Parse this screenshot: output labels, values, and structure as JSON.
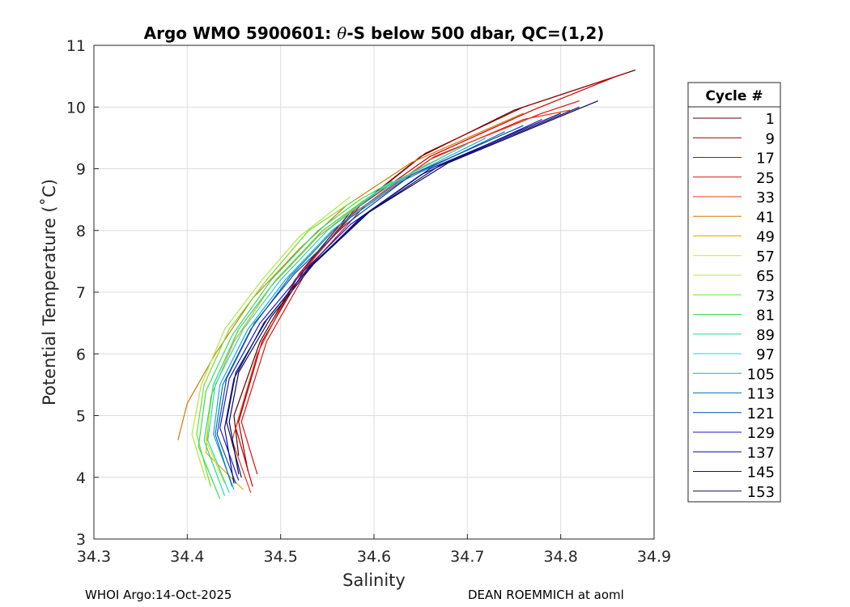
{
  "chart_data": {
    "type": "line",
    "title_prefix": "Argo WMO 5900601: ",
    "title_theta": "θ",
    "title_suffix": "-S below 500 dbar,  QC=(1,2)",
    "xlabel": "Salinity",
    "ylabel": "Potential Temperature (˚C)",
    "xlim": [
      34.3,
      34.9
    ],
    "ylim": [
      3,
      11
    ],
    "xticks": [
      34.3,
      34.4,
      34.5,
      34.6,
      34.7,
      34.8,
      34.9
    ],
    "xtick_labels": [
      "34.3",
      "34.4",
      "34.5",
      "34.6",
      "34.7",
      "34.8",
      "34.9"
    ],
    "yticks": [
      3,
      4,
      5,
      6,
      7,
      8,
      9,
      10,
      11
    ],
    "ytick_labels": [
      "3",
      "4",
      "5",
      "6",
      "7",
      "8",
      "9",
      "10",
      "11"
    ],
    "grid": true,
    "legend": {
      "title": "Cycle #",
      "position": "right",
      "entries": [
        {
          "label": "1",
          "color": "#600000"
        },
        {
          "label": "9",
          "color": "#9a0000"
        },
        {
          "label": "17",
          "color": "#cc0000"
        },
        {
          "label": "25",
          "color": "#e01010"
        },
        {
          "label": "33",
          "color": "#e63a1a"
        },
        {
          "label": "41",
          "color": "#d67a00"
        },
        {
          "label": "49",
          "color": "#e8a800"
        },
        {
          "label": "57",
          "color": "#e6e600"
        },
        {
          "label": "65",
          "color": "#b0e840"
        },
        {
          "label": "73",
          "color": "#6fe030"
        },
        {
          "label": "81",
          "color": "#3cdc55"
        },
        {
          "label": "89",
          "color": "#20dca0"
        },
        {
          "label": "97",
          "color": "#20d8d8"
        },
        {
          "label": "105",
          "color": "#1aa8d8"
        },
        {
          "label": "113",
          "color": "#0a78a8"
        },
        {
          "label": "121",
          "color": "#0a4ab0"
        },
        {
          "label": "129",
          "color": "#1a1acc"
        },
        {
          "label": "137",
          "color": "#0a0a90"
        },
        {
          "label": "145",
          "color": "#14146e"
        },
        {
          "label": "153",
          "color": "#0a0a50"
        }
      ]
    },
    "series": [
      {
        "name": "1",
        "color": "#600000",
        "points": [
          [
            34.455,
            4.35
          ],
          [
            34.45,
            5.0
          ],
          [
            34.478,
            6.2
          ],
          [
            34.52,
            7.3
          ],
          [
            34.575,
            8.3
          ],
          [
            34.65,
            9.2
          ],
          [
            34.75,
            9.95
          ],
          [
            34.88,
            10.6
          ]
        ]
      },
      {
        "name": "9",
        "color": "#9a0000",
        "points": [
          [
            34.465,
            4.1
          ],
          [
            34.455,
            4.9
          ],
          [
            34.48,
            6.2
          ],
          [
            34.525,
            7.35
          ],
          [
            34.58,
            8.35
          ],
          [
            34.655,
            9.25
          ],
          [
            34.76,
            10.0
          ],
          [
            34.87,
            10.55
          ]
        ]
      },
      {
        "name": "17",
        "color": "#cc0000",
        "points": [
          [
            34.47,
            3.85
          ],
          [
            34.452,
            4.8
          ],
          [
            34.478,
            6.1
          ],
          [
            34.52,
            7.3
          ],
          [
            34.585,
            8.4
          ],
          [
            34.66,
            9.2
          ],
          [
            34.77,
            9.95
          ],
          [
            34.86,
            10.5
          ]
        ]
      },
      {
        "name": "25",
        "color": "#e01010",
        "points": [
          [
            34.475,
            4.05
          ],
          [
            34.458,
            4.9
          ],
          [
            34.485,
            6.2
          ],
          [
            34.53,
            7.4
          ],
          [
            34.59,
            8.4
          ],
          [
            34.665,
            9.2
          ],
          [
            34.78,
            9.9
          ],
          [
            34.82,
            10.1
          ]
        ]
      },
      {
        "name": "33",
        "color": "#e63a1a",
        "points": [
          [
            34.468,
            3.75
          ],
          [
            34.448,
            4.6
          ],
          [
            34.475,
            6.0
          ],
          [
            34.515,
            7.2
          ],
          [
            34.58,
            8.3
          ],
          [
            34.66,
            9.15
          ],
          [
            34.76,
            9.8
          ],
          [
            34.81,
            9.95
          ]
        ]
      },
      {
        "name": "41",
        "color": "#d67a00",
        "points": [
          [
            34.39,
            4.6
          ],
          [
            34.4,
            5.2
          ],
          [
            34.43,
            6.0
          ],
          [
            34.47,
            6.9
          ],
          [
            34.52,
            7.7
          ],
          [
            34.57,
            8.4
          ],
          [
            34.64,
            9.1
          ],
          [
            34.76,
            9.9
          ]
        ]
      },
      {
        "name": "49",
        "color": "#e8a800",
        "points": [
          [
            34.46,
            3.8
          ],
          [
            34.42,
            4.4
          ],
          [
            34.425,
            5.3
          ],
          [
            34.45,
            6.2
          ],
          [
            34.49,
            7.1
          ],
          [
            34.54,
            7.9
          ],
          [
            34.6,
            8.6
          ],
          [
            34.7,
            9.4
          ]
        ]
      },
      {
        "name": "57",
        "color": "#e6e600",
        "points": [
          [
            34.44,
            3.9
          ],
          [
            34.42,
            4.6
          ],
          [
            34.428,
            5.5
          ],
          [
            34.455,
            6.4
          ],
          [
            34.495,
            7.2
          ],
          [
            34.545,
            8.0
          ],
          [
            34.59,
            8.5
          ]
        ]
      },
      {
        "name": "65",
        "color": "#b0e840",
        "points": [
          [
            34.42,
            3.95
          ],
          [
            34.405,
            4.7
          ],
          [
            34.415,
            5.5
          ],
          [
            34.44,
            6.4
          ],
          [
            34.48,
            7.2
          ],
          [
            34.52,
            7.9
          ],
          [
            34.575,
            8.55
          ]
        ]
      },
      {
        "name": "73",
        "color": "#6fe030",
        "points": [
          [
            34.425,
            3.85
          ],
          [
            34.41,
            4.7
          ],
          [
            34.418,
            5.5
          ],
          [
            34.445,
            6.4
          ],
          [
            34.485,
            7.2
          ],
          [
            34.53,
            8.0
          ],
          [
            34.58,
            8.5
          ]
        ]
      },
      {
        "name": "81",
        "color": "#3cdc55",
        "points": [
          [
            34.435,
            3.65
          ],
          [
            34.412,
            4.5
          ],
          [
            34.42,
            5.4
          ],
          [
            34.448,
            6.3
          ],
          [
            34.49,
            7.2
          ],
          [
            34.54,
            8.0
          ],
          [
            34.585,
            8.5
          ],
          [
            34.62,
            8.8
          ]
        ]
      },
      {
        "name": "89",
        "color": "#20dca0",
        "points": [
          [
            34.44,
            3.7
          ],
          [
            34.418,
            4.6
          ],
          [
            34.428,
            5.5
          ],
          [
            34.455,
            6.4
          ],
          [
            34.495,
            7.2
          ],
          [
            34.545,
            8.0
          ],
          [
            34.6,
            8.6
          ],
          [
            34.66,
            9.1
          ]
        ]
      },
      {
        "name": "97",
        "color": "#20d8d8",
        "points": [
          [
            34.445,
            3.75
          ],
          [
            34.422,
            4.6
          ],
          [
            34.43,
            5.5
          ],
          [
            34.46,
            6.4
          ],
          [
            34.5,
            7.2
          ],
          [
            34.55,
            8.0
          ],
          [
            34.61,
            8.7
          ],
          [
            34.7,
            9.4
          ]
        ]
      },
      {
        "name": "105",
        "color": "#1aa8d8",
        "points": [
          [
            34.45,
            3.8
          ],
          [
            34.428,
            4.7
          ],
          [
            34.435,
            5.5
          ],
          [
            34.465,
            6.4
          ],
          [
            34.505,
            7.2
          ],
          [
            34.555,
            8.0
          ],
          [
            34.62,
            8.75
          ],
          [
            34.72,
            9.5
          ]
        ]
      },
      {
        "name": "113",
        "color": "#0a78a8",
        "points": [
          [
            34.448,
            3.85
          ],
          [
            34.43,
            4.7
          ],
          [
            34.438,
            5.5
          ],
          [
            34.468,
            6.4
          ],
          [
            34.51,
            7.25
          ],
          [
            34.56,
            8.05
          ],
          [
            34.63,
            8.8
          ],
          [
            34.74,
            9.6
          ]
        ]
      },
      {
        "name": "121",
        "color": "#0a4ab0",
        "points": [
          [
            34.452,
            3.9
          ],
          [
            34.432,
            4.7
          ],
          [
            34.442,
            5.6
          ],
          [
            34.472,
            6.5
          ],
          [
            34.515,
            7.3
          ],
          [
            34.57,
            8.1
          ],
          [
            34.64,
            8.9
          ],
          [
            34.76,
            9.7
          ]
        ]
      },
      {
        "name": "129",
        "color": "#1a1acc",
        "points": [
          [
            34.455,
            3.95
          ],
          [
            34.435,
            4.8
          ],
          [
            34.445,
            5.6
          ],
          [
            34.478,
            6.5
          ],
          [
            34.522,
            7.3
          ],
          [
            34.575,
            8.1
          ],
          [
            34.65,
            8.9
          ],
          [
            34.78,
            9.8
          ]
        ]
      },
      {
        "name": "137",
        "color": "#0a0a90",
        "points": [
          [
            34.45,
            3.9
          ],
          [
            34.44,
            4.8
          ],
          [
            34.45,
            5.6
          ],
          [
            34.482,
            6.5
          ],
          [
            34.528,
            7.35
          ],
          [
            34.585,
            8.2
          ],
          [
            34.66,
            9.0
          ],
          [
            34.8,
            9.9
          ]
        ]
      },
      {
        "name": "145",
        "color": "#14146e",
        "points": [
          [
            34.458,
            4.0
          ],
          [
            34.442,
            4.9
          ],
          [
            34.452,
            5.7
          ],
          [
            34.485,
            6.55
          ],
          [
            34.53,
            7.4
          ],
          [
            34.59,
            8.25
          ],
          [
            34.67,
            9.05
          ],
          [
            34.82,
            10.0
          ]
        ]
      },
      {
        "name": "153",
        "color": "#0a0a50",
        "points": [
          [
            34.455,
            4.05
          ],
          [
            34.445,
            4.9
          ],
          [
            34.455,
            5.7
          ],
          [
            34.49,
            6.6
          ],
          [
            34.535,
            7.45
          ],
          [
            34.595,
            8.3
          ],
          [
            34.68,
            9.1
          ],
          [
            34.84,
            10.1
          ]
        ]
      }
    ]
  },
  "footer": {
    "left": "WHOI Argo:14-Oct-2025",
    "right": "DEAN ROEMMICH at aoml"
  }
}
